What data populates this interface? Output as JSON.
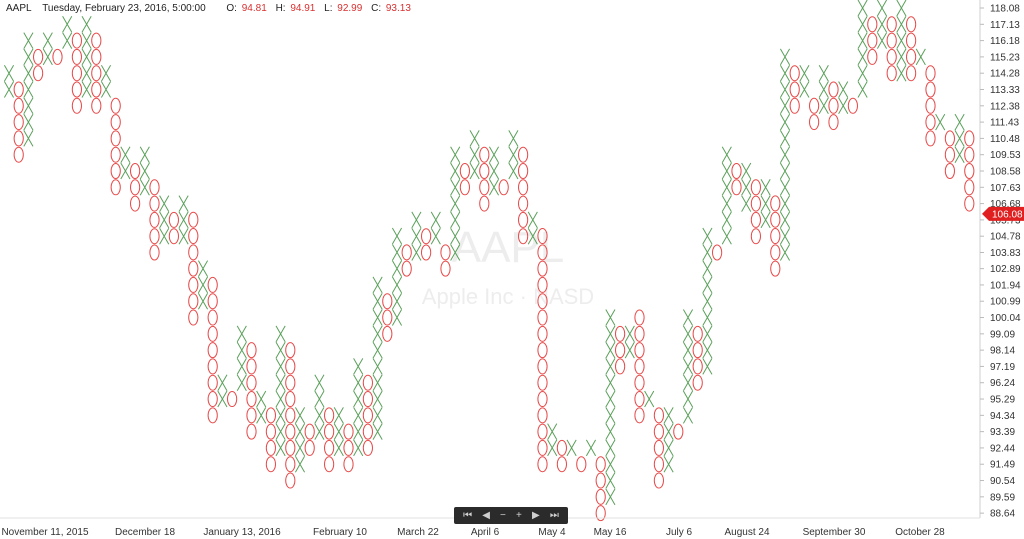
{
  "header": {
    "symbol": "AAPL",
    "datetime": "Tuesday, February 23, 2016, 5:00:00",
    "open_label": "O:",
    "open": "94.81",
    "high_label": "H:",
    "high": "94.91",
    "low_label": "L:",
    "low": "92.99",
    "close_label": "C:",
    "close": "93.13"
  },
  "watermark": {
    "symbol": "AAPL",
    "name": "Apple Inc · NASD"
  },
  "navigator": {
    "buttons": [
      {
        "name": "go-to-start",
        "glyph": "⏮"
      },
      {
        "name": "scroll-left",
        "glyph": "◀"
      },
      {
        "name": "zoom-out",
        "glyph": "−"
      },
      {
        "name": "zoom-in",
        "glyph": "+"
      },
      {
        "name": "scroll-right",
        "glyph": "▶"
      },
      {
        "name": "go-to-end",
        "glyph": "⏭"
      }
    ]
  },
  "colors": {
    "x": "#5aa05a",
    "o": "#e84a4a",
    "price_tag": "#e02020",
    "axis_text": "#333333"
  },
  "chart_data": {
    "type": "point-and-figure",
    "box_size": 0.95,
    "y_tick_labels": [
      "118.08",
      "117.13",
      "116.18",
      "115.23",
      "114.28",
      "113.33",
      "112.38",
      "111.43",
      "110.48",
      "109.53",
      "108.58",
      "107.63",
      "106.68",
      "105.73",
      "104.78",
      "103.83",
      "102.89",
      "101.94",
      "100.99",
      "100.04",
      "99.09",
      "98.14",
      "97.19",
      "96.24",
      "95.29",
      "94.34",
      "93.39",
      "92.44",
      "91.49",
      "90.54",
      "89.59",
      "88.64"
    ],
    "x_tick_labels": [
      "November 11, 2015",
      "December 18",
      "January 13, 2016",
      "February 10",
      "March 22",
      "April 6",
      "May 4",
      "May 16",
      "July 6",
      "August 24",
      "September 30",
      "October 28"
    ],
    "last_price": "106.08",
    "columns": [
      {
        "t": "X",
        "lo": 113.33,
        "hi": 114.28
      },
      {
        "t": "O",
        "lo": 109.53,
        "hi": 113.33
      },
      {
        "t": "X",
        "lo": 110.48,
        "hi": 116.18
      },
      {
        "t": "O",
        "lo": 114.28,
        "hi": 115.23
      },
      {
        "t": "X",
        "lo": 115.23,
        "hi": 116.18
      },
      {
        "t": "O",
        "lo": 115.23,
        "hi": 115.23
      },
      {
        "t": "X",
        "lo": 116.18,
        "hi": 117.13
      },
      {
        "t": "O",
        "lo": 112.38,
        "hi": 116.18
      },
      {
        "t": "X",
        "lo": 113.33,
        "hi": 117.13
      },
      {
        "t": "O",
        "lo": 112.38,
        "hi": 116.18
      },
      {
        "t": "X",
        "lo": 113.33,
        "hi": 114.28
      },
      {
        "t": "O",
        "lo": 107.63,
        "hi": 112.38
      },
      {
        "t": "X",
        "lo": 108.58,
        "hi": 109.53
      },
      {
        "t": "O",
        "lo": 106.68,
        "hi": 108.58
      },
      {
        "t": "X",
        "lo": 107.63,
        "hi": 109.53
      },
      {
        "t": "O",
        "lo": 103.83,
        "hi": 107.63
      },
      {
        "t": "X",
        "lo": 104.78,
        "hi": 106.68
      },
      {
        "t": "O",
        "lo": 104.78,
        "hi": 105.73
      },
      {
        "t": "X",
        "lo": 104.78,
        "hi": 106.68
      },
      {
        "t": "O",
        "lo": 100.04,
        "hi": 105.73
      },
      {
        "t": "X",
        "lo": 100.99,
        "hi": 102.89
      },
      {
        "t": "O",
        "lo": 94.34,
        "hi": 101.94
      },
      {
        "t": "X",
        "lo": 95.29,
        "hi": 96.24
      },
      {
        "t": "O",
        "lo": 95.29,
        "hi": 95.29
      },
      {
        "t": "X",
        "lo": 96.24,
        "hi": 99.09
      },
      {
        "t": "O",
        "lo": 93.39,
        "hi": 98.14
      },
      {
        "t": "X",
        "lo": 94.34,
        "hi": 95.29
      },
      {
        "t": "O",
        "lo": 91.49,
        "hi": 94.34
      },
      {
        "t": "X",
        "lo": 92.44,
        "hi": 99.09
      },
      {
        "t": "O",
        "lo": 90.54,
        "hi": 98.14
      },
      {
        "t": "X",
        "lo": 91.49,
        "hi": 94.34
      },
      {
        "t": "O",
        "lo": 92.44,
        "hi": 93.39
      },
      {
        "t": "X",
        "lo": 93.39,
        "hi": 96.24
      },
      {
        "t": "O",
        "lo": 91.49,
        "hi": 94.34
      },
      {
        "t": "X",
        "lo": 92.44,
        "hi": 94.34
      },
      {
        "t": "O",
        "lo": 91.49,
        "hi": 93.39
      },
      {
        "t": "X",
        "lo": 92.44,
        "hi": 97.19
      },
      {
        "t": "O",
        "lo": 92.44,
        "hi": 96.24
      },
      {
        "t": "X",
        "lo": 93.39,
        "hi": 101.94
      },
      {
        "t": "O",
        "lo": 99.09,
        "hi": 100.99
      },
      {
        "t": "X",
        "lo": 100.04,
        "hi": 104.78
      },
      {
        "t": "O",
        "lo": 102.89,
        "hi": 103.83
      },
      {
        "t": "X",
        "lo": 103.83,
        "hi": 105.73
      },
      {
        "t": "O",
        "lo": 103.83,
        "hi": 104.78
      },
      {
        "t": "X",
        "lo": 104.78,
        "hi": 105.73
      },
      {
        "t": "O",
        "lo": 102.89,
        "hi": 103.83
      },
      {
        "t": "X",
        "lo": 103.83,
        "hi": 109.53
      },
      {
        "t": "O",
        "lo": 107.63,
        "hi": 108.58
      },
      {
        "t": "X",
        "lo": 108.58,
        "hi": 110.48
      },
      {
        "t": "O",
        "lo": 106.68,
        "hi": 109.53
      },
      {
        "t": "X",
        "lo": 107.63,
        "hi": 109.53
      },
      {
        "t": "O",
        "lo": 107.63,
        "hi": 107.63
      },
      {
        "t": "X",
        "lo": 108.58,
        "hi": 110.48
      },
      {
        "t": "O",
        "lo": 104.78,
        "hi": 109.53
      },
      {
        "t": "X",
        "lo": 104.78,
        "hi": 105.73
      },
      {
        "t": "O",
        "lo": 91.49,
        "hi": 104.78
      },
      {
        "t": "X",
        "lo": 92.44,
        "hi": 93.39
      },
      {
        "t": "O",
        "lo": 91.49,
        "hi": 92.44
      },
      {
        "t": "X",
        "lo": 92.44,
        "hi": 92.44
      },
      {
        "t": "O",
        "lo": 91.49,
        "hi": 91.49
      },
      {
        "t": "X",
        "lo": 92.44,
        "hi": 92.44
      },
      {
        "t": "O",
        "lo": 88.64,
        "hi": 91.49
      },
      {
        "t": "X",
        "lo": 89.59,
        "hi": 100.04
      },
      {
        "t": "O",
        "lo": 97.19,
        "hi": 99.09
      },
      {
        "t": "X",
        "lo": 98.14,
        "hi": 99.09
      },
      {
        "t": "O",
        "lo": 94.34,
        "hi": 100.04
      },
      {
        "t": "X",
        "lo": 95.29,
        "hi": 95.29
      },
      {
        "t": "O",
        "lo": 90.54,
        "hi": 94.34
      },
      {
        "t": "X",
        "lo": 91.49,
        "hi": 94.34
      },
      {
        "t": "O",
        "lo": 93.39,
        "hi": 93.39
      },
      {
        "t": "X",
        "lo": 94.34,
        "hi": 100.04
      },
      {
        "t": "O",
        "lo": 96.24,
        "hi": 99.09
      },
      {
        "t": "X",
        "lo": 97.19,
        "hi": 104.78
      },
      {
        "t": "O",
        "lo": 103.83,
        "hi": 103.83
      },
      {
        "t": "X",
        "lo": 104.78,
        "hi": 109.53
      },
      {
        "t": "O",
        "lo": 107.63,
        "hi": 108.58
      },
      {
        "t": "X",
        "lo": 106.68,
        "hi": 108.58
      },
      {
        "t": "O",
        "lo": 104.78,
        "hi": 107.63
      },
      {
        "t": "X",
        "lo": 105.73,
        "hi": 107.63
      },
      {
        "t": "O",
        "lo": 102.89,
        "hi": 106.68
      },
      {
        "t": "X",
        "lo": 103.83,
        "hi": 115.23
      },
      {
        "t": "O",
        "lo": 112.38,
        "hi": 114.28
      },
      {
        "t": "X",
        "lo": 113.33,
        "hi": 114.28
      },
      {
        "t": "O",
        "lo": 111.43,
        "hi": 112.38
      },
      {
        "t": "X",
        "lo": 112.38,
        "hi": 114.28
      },
      {
        "t": "O",
        "lo": 111.43,
        "hi": 113.33
      },
      {
        "t": "X",
        "lo": 112.38,
        "hi": 113.33
      },
      {
        "t": "O",
        "lo": 112.38,
        "hi": 112.38
      },
      {
        "t": "X",
        "lo": 113.33,
        "hi": 118.08
      },
      {
        "t": "O",
        "lo": 115.23,
        "hi": 117.13
      },
      {
        "t": "X",
        "lo": 116.18,
        "hi": 118.08
      },
      {
        "t": "O",
        "lo": 114.28,
        "hi": 117.13
      },
      {
        "t": "X",
        "lo": 114.28,
        "hi": 118.08
      },
      {
        "t": "O",
        "lo": 114.28,
        "hi": 117.13
      },
      {
        "t": "X",
        "lo": 115.23,
        "hi": 115.23
      },
      {
        "t": "O",
        "lo": 110.48,
        "hi": 114.28
      },
      {
        "t": "X",
        "lo": 111.43,
        "hi": 111.43
      },
      {
        "t": "O",
        "lo": 108.58,
        "hi": 110.48
      },
      {
        "t": "X",
        "lo": 109.53,
        "hi": 111.43
      },
      {
        "t": "O",
        "lo": 106.68,
        "hi": 110.48
      }
    ]
  }
}
